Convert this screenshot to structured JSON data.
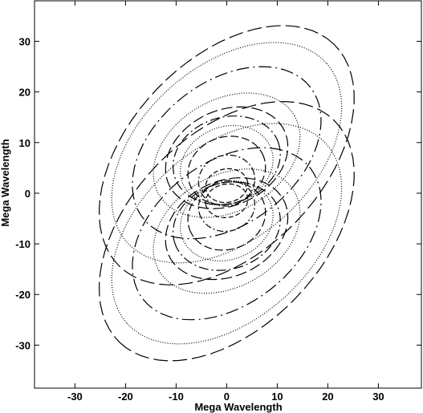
{
  "chart_data": {
    "type": "scatter",
    "title": "",
    "xlabel": "Mega Wavelength",
    "ylabel": "Mega Wavelength",
    "xlim": [
      -38,
      38.5
    ],
    "ylim": [
      -38.5,
      38
    ],
    "xticks": [
      -30,
      -20,
      -10,
      0,
      10,
      20,
      30
    ],
    "yticks": [
      -30,
      -20,
      -10,
      0,
      10,
      20,
      30
    ],
    "grid": false,
    "legend": "none",
    "series": [
      {
        "a": 4.2,
        "b": 3.3,
        "tilt": 10,
        "cx": 0,
        "cy": 1.5,
        "dash": "6 3"
      },
      {
        "a": 5.6,
        "b": 5.0,
        "tilt": 15,
        "cx": 0,
        "cy": 2.5,
        "dash": "8 3 2 3"
      },
      {
        "a": 7.8,
        "b": 6.6,
        "tilt": 20,
        "cx": 0,
        "cy": 4.5,
        "dash": "10 4"
      },
      {
        "a": 9.4,
        "b": 7.6,
        "tilt": 22,
        "cx": 0,
        "cy": 5.5,
        "dash": "1 2"
      },
      {
        "a": 10.8,
        "b": 8.5,
        "tilt": 18,
        "cx": 0,
        "cy": 6.5,
        "dash": "12 4 2 4"
      },
      {
        "a": 12.6,
        "b": 9.4,
        "tilt": 25,
        "cx": 0,
        "cy": 7.0,
        "dash": "14 5"
      },
      {
        "a": 15.5,
        "b": 11.0,
        "tilt": 30,
        "cx": 0,
        "cy": 7.5,
        "dash": "1 2"
      },
      {
        "a": 21.0,
        "b": 14.0,
        "tilt": 38,
        "cx": 0,
        "cy": 8.0,
        "dash": "16 5 2 5"
      },
      {
        "a": 26.5,
        "b": 17.0,
        "tilt": 42,
        "cx": 0,
        "cy": 8.0,
        "dash": "1 2"
      },
      {
        "a": 30.5,
        "b": 19.0,
        "tilt": 46,
        "cx": 0,
        "cy": 7.5,
        "dash": "18 6"
      }
    ]
  }
}
